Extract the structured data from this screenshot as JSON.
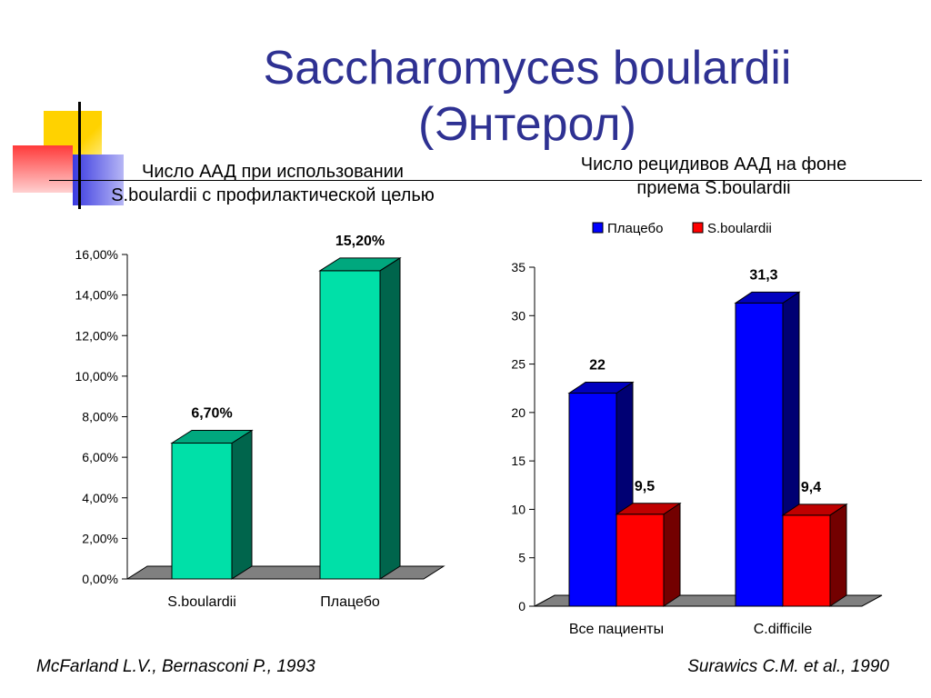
{
  "slide": {
    "title_line1": "Saccharomyces boulardii",
    "title_line2": "(Энтерол)",
    "citation_left": "McFarland L.V., Bernasconi P., 1993",
    "citation_right": "Surawics C.M. et al., 1990"
  },
  "colors": {
    "title": "#2e3192",
    "green_bar": "#00e0a8",
    "blue_bar": "#0000ff",
    "red_bar": "#ff0000"
  },
  "chart_data": [
    {
      "type": "bar",
      "title_line1": "Число ААД при использовании",
      "title_line2": "S.boulardii с профилактической целью",
      "categories": [
        "S.boulardii",
        "Плацебо"
      ],
      "values": [
        6.7,
        15.2
      ],
      "value_labels": [
        "6,70%",
        "15,20%"
      ],
      "yticks": [
        "0,00%",
        "2,00%",
        "4,00%",
        "6,00%",
        "8,00%",
        "10,00%",
        "12,00%",
        "14,00%",
        "16,00%"
      ],
      "ylim": [
        0,
        16
      ],
      "grid": false,
      "legend": "none"
    },
    {
      "type": "bar",
      "title_line1": "Число рецидивов ААД на фоне",
      "title_line2": "приема S.boulardii",
      "categories": [
        "Все пациенты",
        "C.difficile"
      ],
      "series": [
        {
          "name": "Плацебо",
          "values": [
            22,
            31.3
          ],
          "labels": [
            "22",
            "31,3"
          ],
          "color": "#0000ff"
        },
        {
          "name": "S.boulardii",
          "values": [
            9.5,
            9.4
          ],
          "labels": [
            "9,5",
            "9,4"
          ],
          "color": "#ff0000"
        }
      ],
      "yticks": [
        "0",
        "5",
        "10",
        "15",
        "20",
        "25",
        "30",
        "35"
      ],
      "ylim": [
        0,
        35
      ],
      "grid": false,
      "legend": "top"
    }
  ]
}
